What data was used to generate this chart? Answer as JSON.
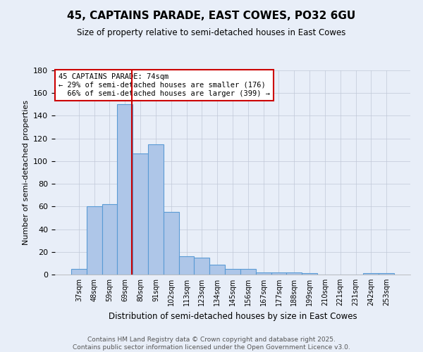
{
  "title": "45, CAPTAINS PARADE, EAST COWES, PO32 6GU",
  "subtitle": "Size of property relative to semi-detached houses in East Cowes",
  "xlabel": "Distribution of semi-detached houses by size in East Cowes",
  "ylabel": "Number of semi-detached properties",
  "categories": [
    "37sqm",
    "48sqm",
    "59sqm",
    "69sqm",
    "80sqm",
    "91sqm",
    "102sqm",
    "113sqm",
    "123sqm",
    "134sqm",
    "145sqm",
    "156sqm",
    "167sqm",
    "177sqm",
    "188sqm",
    "199sqm",
    "210sqm",
    "221sqm",
    "231sqm",
    "242sqm",
    "253sqm"
  ],
  "values": [
    5,
    60,
    62,
    150,
    107,
    115,
    55,
    16,
    15,
    9,
    5,
    5,
    2,
    2,
    2,
    1,
    0,
    0,
    0,
    1,
    1
  ],
  "bar_color": "#aec6e8",
  "bar_edge_color": "#5a9bd5",
  "red_line_x": 3.45,
  "red_line_label": "45 CAPTAINS PARADE: 74sqm",
  "pct_smaller": 29,
  "pct_larger": 66,
  "n_smaller": 176,
  "n_larger": 399,
  "ylim": [
    0,
    180
  ],
  "yticks": [
    0,
    20,
    40,
    60,
    80,
    100,
    120,
    140,
    160,
    180
  ],
  "annotation_box_color": "#ffffff",
  "annotation_box_edge": "#cc0000",
  "footer": "Contains HM Land Registry data © Crown copyright and database right 2025.\nContains public sector information licensed under the Open Government Licence v3.0.",
  "bg_color": "#e8eef8"
}
